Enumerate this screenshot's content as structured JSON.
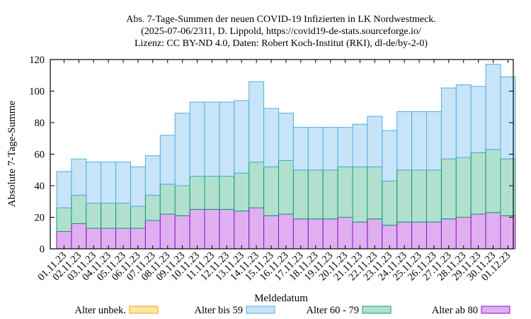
{
  "chart_data": {
    "type": "bar",
    "stacked": true,
    "title_lines": [
      "Abs. 7-Tage-Summen der neuen COVID-19 Infizierten in LK Nordwestmeck.",
      "(2025-07-06/2311, D. Lippold, https://covid19-de-stats.sourceforge.io/",
      "Lizenz: CC BY-ND 4.0, Daten: Robert Koch-Institut (RKI), dl-de/by-2-0)"
    ],
    "xlabel": "Meldedatum",
    "ylabel": "Absolute 7-Tage-Summe",
    "ylim": [
      0,
      120
    ],
    "yticks": [
      0,
      20,
      40,
      60,
      80,
      100,
      120
    ],
    "grid": false,
    "legend_position": "bottom",
    "categories": [
      "01.11.23",
      "02.11.23",
      "03.11.23",
      "04.11.23",
      "05.11.23",
      "06.11.23",
      "07.11.23",
      "08.11.23",
      "09.11.23",
      "10.11.23",
      "11.11.23",
      "12.11.23",
      "13.11.23",
      "14.11.23",
      "15.11.23",
      "16.11.23",
      "17.11.23",
      "18.11.23",
      "19.11.23",
      "20.11.23",
      "21.11.23",
      "22.11.23",
      "23.11.23",
      "24.11.23",
      "25.11.23",
      "26.11.23",
      "27.11.23",
      "28.11.23",
      "29.11.23",
      "30.11.23",
      "01.12.23"
    ],
    "series": [
      {
        "name": "Alter unbek.",
        "fill": "#fde5a8",
        "stroke": "#e6a817",
        "values": [
          0,
          0,
          0,
          0,
          0,
          0,
          0,
          0,
          0,
          0,
          0,
          0,
          0,
          0,
          0,
          0,
          0,
          0,
          0,
          0,
          0,
          0,
          0,
          0,
          0,
          0,
          0,
          0,
          0,
          0,
          0
        ]
      },
      {
        "name": "Alter bis 59",
        "fill": "#c8e4f8",
        "stroke": "#4faee0",
        "values": [
          23,
          23,
          26,
          26,
          26,
          25,
          25,
          31,
          46,
          47,
          47,
          47,
          46,
          51,
          37,
          30,
          27,
          27,
          27,
          25,
          27,
          32,
          32,
          37,
          37,
          37,
          45,
          46,
          42,
          54,
          52
        ]
      },
      {
        "name": "Alter 60 - 79",
        "fill": "#b2e0cf",
        "stroke": "#119e6b",
        "values": [
          15,
          18,
          16,
          16,
          16,
          14,
          16,
          19,
          19,
          21,
          21,
          21,
          24,
          29,
          31,
          34,
          31,
          31,
          31,
          32,
          35,
          33,
          28,
          33,
          33,
          33,
          38,
          38,
          39,
          40,
          36
        ]
      },
      {
        "name": "Alter ab 80",
        "fill": "#e0aff2",
        "stroke": "#8a13c7",
        "values": [
          11,
          16,
          13,
          13,
          13,
          13,
          18,
          22,
          21,
          25,
          25,
          25,
          24,
          26,
          21,
          22,
          19,
          19,
          19,
          20,
          17,
          19,
          15,
          17,
          17,
          17,
          19,
          20,
          22,
          23,
          21
        ]
      }
    ]
  }
}
